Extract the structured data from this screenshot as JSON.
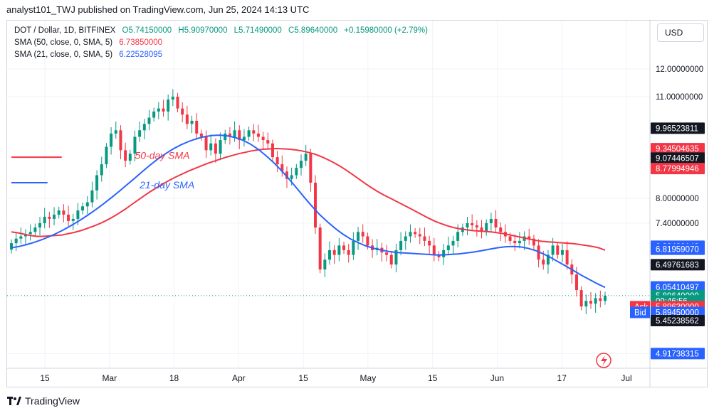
{
  "header": {
    "text": "analyst101_TWJ published on TradingView.com, Jun 25, 2024 14:13 UTC"
  },
  "legend": {
    "symbol": "DOT / Dollar, 1D, BITFINEX",
    "open": "O5.74150000",
    "high": "H5.90970000",
    "low": "L5.71490000",
    "close": "C5.89640000",
    "change": "+0.15980000 (+2.79%)",
    "sma50_label": "SMA (50, close, 0, SMA, 5)",
    "sma50_value": "6.73850000",
    "sma21_label": "SMA (21, close, 0, SMA, 5)",
    "sma21_value": "6.22528095"
  },
  "currency": "USD",
  "footer": {
    "brand": "TradingView"
  },
  "colors": {
    "up": "#089981",
    "down": "#f23645",
    "sma50": "#f23645",
    "sma21": "#2962ff",
    "grid": "#f0f3fa",
    "axis_text": "#131722"
  },
  "chart_data": {
    "type": "candlestick",
    "symbol": "DOT / Dollar, 1D, BITFINEX",
    "y_scale": "log",
    "ylim": [
      4.9,
      13.0
    ],
    "x_ticks": [
      "15",
      "Mar",
      "18",
      "Apr",
      "15",
      "May",
      "15",
      "Jun",
      "17",
      "Jul"
    ],
    "y_ticks": [
      {
        "label": "12.00000000",
        "value": 12.0
      },
      {
        "label": "11.00000000",
        "value": 11.0
      },
      {
        "label": "8.00000000",
        "value": 8.0
      },
      {
        "label": "7.40000000",
        "value": 7.4
      },
      {
        "label": "4.91738315",
        "value": 4.91738315
      }
    ],
    "price_tags": [
      {
        "label": "9.96523811",
        "value": 9.96523811,
        "bg": "#131722",
        "fg": "#ffffff"
      },
      {
        "label": "9.34504635",
        "value": 9.34504635,
        "bg": "#f23645",
        "fg": "#ffffff"
      },
      {
        "label": "9.07446507",
        "value": 9.07446507,
        "bg": "#131722",
        "fg": "#ffffff"
      },
      {
        "label": "8.77994946",
        "value": 8.77994946,
        "bg": "#f23645",
        "fg": "#ffffff"
      },
      {
        "label": "6.88430143",
        "value": 6.88430143,
        "bg": "#2962ff",
        "fg": "#ffffff"
      },
      {
        "label": "6.81959070",
        "value": 6.8195907,
        "bg": "#2962ff",
        "fg": "#ffffff"
      },
      {
        "label": "6.49761683",
        "value": 6.49761683,
        "bg": "#131722",
        "fg": "#ffffff"
      },
      {
        "label": "6.06057820",
        "value": 6.0605782,
        "bg": "#2962ff",
        "fg": "#ffffff"
      },
      {
        "label": "6.05410497",
        "value": 6.05410497,
        "bg": "#2962ff",
        "fg": "#ffffff"
      },
      {
        "label": "5.89640000",
        "value": 5.8964,
        "bg": "#089981",
        "fg": "#ffffff"
      },
      {
        "label": "09:46:56",
        "value": 5.8,
        "bg": "#089981",
        "fg": "#ffffff"
      },
      {
        "label": "5.89630000",
        "value": 5.6963,
        "bg": "#f23645",
        "fg": "#ffffff",
        "side_label": "Ask"
      },
      {
        "label": "5.89450000",
        "value": 5.5945,
        "bg": "#2962ff",
        "fg": "#ffffff",
        "side_label": "Bid"
      },
      {
        "label": "5.45238562",
        "value": 5.45238562,
        "bg": "#131722",
        "fg": "#ffffff"
      },
      {
        "label": "4.91738315",
        "value": 4.91738315,
        "bg": "#2962ff",
        "fg": "#ffffff"
      }
    ],
    "annotations": [
      {
        "text": "50-day SMA",
        "x": 26,
        "y": 9.05,
        "color": "#f23645"
      },
      {
        "text": "21-day SMA",
        "x": 27,
        "y": 8.25,
        "color": "#2962ff"
      }
    ],
    "annotation_lines": [
      {
        "x0": 0,
        "x1": 10,
        "y": 9.1,
        "color": "#f23645"
      },
      {
        "x0": 0,
        "x1": 7,
        "y": 8.4,
        "color": "#2962ff"
      }
    ],
    "close": [
      6.95,
      7.05,
      7.1,
      7.15,
      7.2,
      7.3,
      7.4,
      7.55,
      7.5,
      7.6,
      7.7,
      7.6,
      7.45,
      7.5,
      7.7,
      7.8,
      7.9,
      8.2,
      8.6,
      8.9,
      9.4,
      9.8,
      9.9,
      9.3,
      9.0,
      9.2,
      9.7,
      9.9,
      10.1,
      10.3,
      10.5,
      10.6,
      10.5,
      10.9,
      11.0,
      10.6,
      10.4,
      10.1,
      10.2,
      9.8,
      9.7,
      9.3,
      9.5,
      9.2,
      9.6,
      9.8,
      9.7,
      9.9,
      9.6,
      9.7,
      9.9,
      9.8,
      9.7,
      9.6,
      9.5,
      9.1,
      8.9,
      8.7,
      8.5,
      8.6,
      8.8,
      9.0,
      9.2,
      8.4,
      7.3,
      6.4,
      6.6,
      6.8,
      6.7,
      6.9,
      6.8,
      6.7,
      7.0,
      7.2,
      7.1,
      6.9,
      6.8,
      6.85,
      6.75,
      6.7,
      6.5,
      6.8,
      7.0,
      7.1,
      7.2,
      7.15,
      7.1,
      7.0,
      6.9,
      6.7,
      6.65,
      6.8,
      6.9,
      7.0,
      7.2,
      7.3,
      7.4,
      7.35,
      7.3,
      7.2,
      7.4,
      7.5,
      7.3,
      7.2,
      7.1,
      7.0,
      6.95,
      7.0,
      7.1,
      7.05,
      6.9,
      6.6,
      6.5,
      6.7,
      6.9,
      6.7,
      6.8,
      6.5,
      6.3,
      6.0,
      5.7,
      5.8,
      5.75,
      5.85,
      5.8,
      5.8964
    ],
    "sma50": [
      7.2,
      7.18,
      7.15,
      7.12,
      7.1,
      7.1,
      7.11,
      7.12,
      7.13,
      7.16,
      7.19,
      7.23,
      7.28,
      7.33,
      7.39,
      7.46,
      7.54,
      7.63,
      7.73,
      7.84,
      7.95,
      8.06,
      8.17,
      8.27,
      8.37,
      8.46,
      8.55,
      8.63,
      8.71,
      8.78,
      8.85,
      8.92,
      8.98,
      9.04,
      9.1,
      9.15,
      9.2,
      9.24,
      9.28,
      9.31,
      9.33,
      9.34,
      9.35,
      9.34,
      9.33,
      9.31,
      9.28,
      9.24,
      9.19,
      9.12,
      9.04,
      8.95,
      8.85,
      8.74,
      8.62,
      8.5,
      8.38,
      8.27,
      8.17,
      8.08,
      8.0,
      7.92,
      7.84,
      7.76,
      7.68,
      7.6,
      7.52,
      7.45,
      7.39,
      7.34,
      7.3,
      7.27,
      7.25,
      7.23,
      7.22,
      7.21,
      7.2,
      7.18,
      7.16,
      7.13,
      7.1,
      7.07,
      7.04,
      7.01,
      6.99,
      6.98,
      6.97,
      6.96,
      6.95,
      6.94,
      6.92,
      6.9,
      6.88,
      6.85,
      6.8
    ],
    "sma21": [
      6.85,
      6.88,
      6.92,
      6.97,
      7.03,
      7.1,
      7.18,
      7.27,
      7.37,
      7.48,
      7.6,
      7.73,
      7.87,
      8.02,
      8.18,
      8.35,
      8.52,
      8.7,
      8.88,
      9.05,
      9.2,
      9.34,
      9.46,
      9.56,
      9.64,
      9.7,
      9.74,
      9.75,
      9.73,
      9.68,
      9.6,
      9.48,
      9.33,
      9.15,
      8.95,
      8.73,
      8.5,
      8.26,
      8.02,
      7.8,
      7.6,
      7.43,
      7.28,
      7.15,
      7.04,
      6.96,
      6.89,
      6.84,
      6.8,
      6.77,
      6.75,
      6.74,
      6.73,
      6.72,
      6.71,
      6.7,
      6.7,
      6.71,
      6.72,
      6.74,
      6.76,
      6.79,
      6.82,
      6.85,
      6.87,
      6.88,
      6.87,
      6.84,
      6.79,
      6.72,
      6.64,
      6.55,
      6.46,
      6.37,
      6.28,
      6.2,
      6.12,
      6.05
    ]
  }
}
